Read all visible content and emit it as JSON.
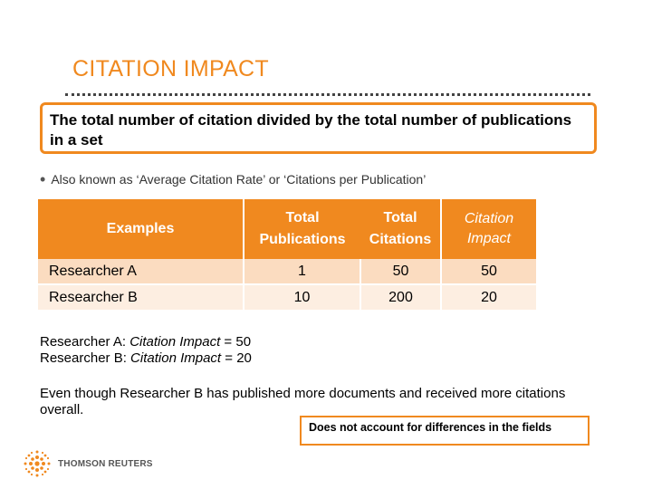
{
  "title": "CITATION IMPACT",
  "definition": "The total number  of citation divided by the total number of publications in a set",
  "bullet": "Also known as ‘Average Citation Rate’ or ‘Citations per Publication’",
  "table": {
    "headers": {
      "examples": "Examples",
      "publications_1": "Total",
      "publications_2": "Publications",
      "citations_1": "Total",
      "citations_2": "Citations",
      "impact_1": "Citation",
      "impact_2": "Impact"
    },
    "rows": [
      {
        "name": "Researcher A",
        "publications": "1",
        "citations": "50",
        "impact": "50"
      },
      {
        "name": "Researcher B",
        "publications": "10",
        "citations": "200",
        "impact": "20"
      }
    ]
  },
  "results": {
    "a_prefix": "Researcher A: ",
    "a_italic": "Citation Impact",
    "a_suffix": " = 50",
    "b_prefix": "Researcher B: ",
    "b_italic": "Citation Impact",
    "b_suffix": " = 20"
  },
  "summary": " Even though Researcher B has published more documents and received more citations overall.",
  "note": "Does not account for differences in the fields",
  "logo_text": "THOMSON REUTERS",
  "colors": {
    "accent": "#f0891f",
    "row_a": "#fbdcc0",
    "row_b": "#fdeee1"
  }
}
